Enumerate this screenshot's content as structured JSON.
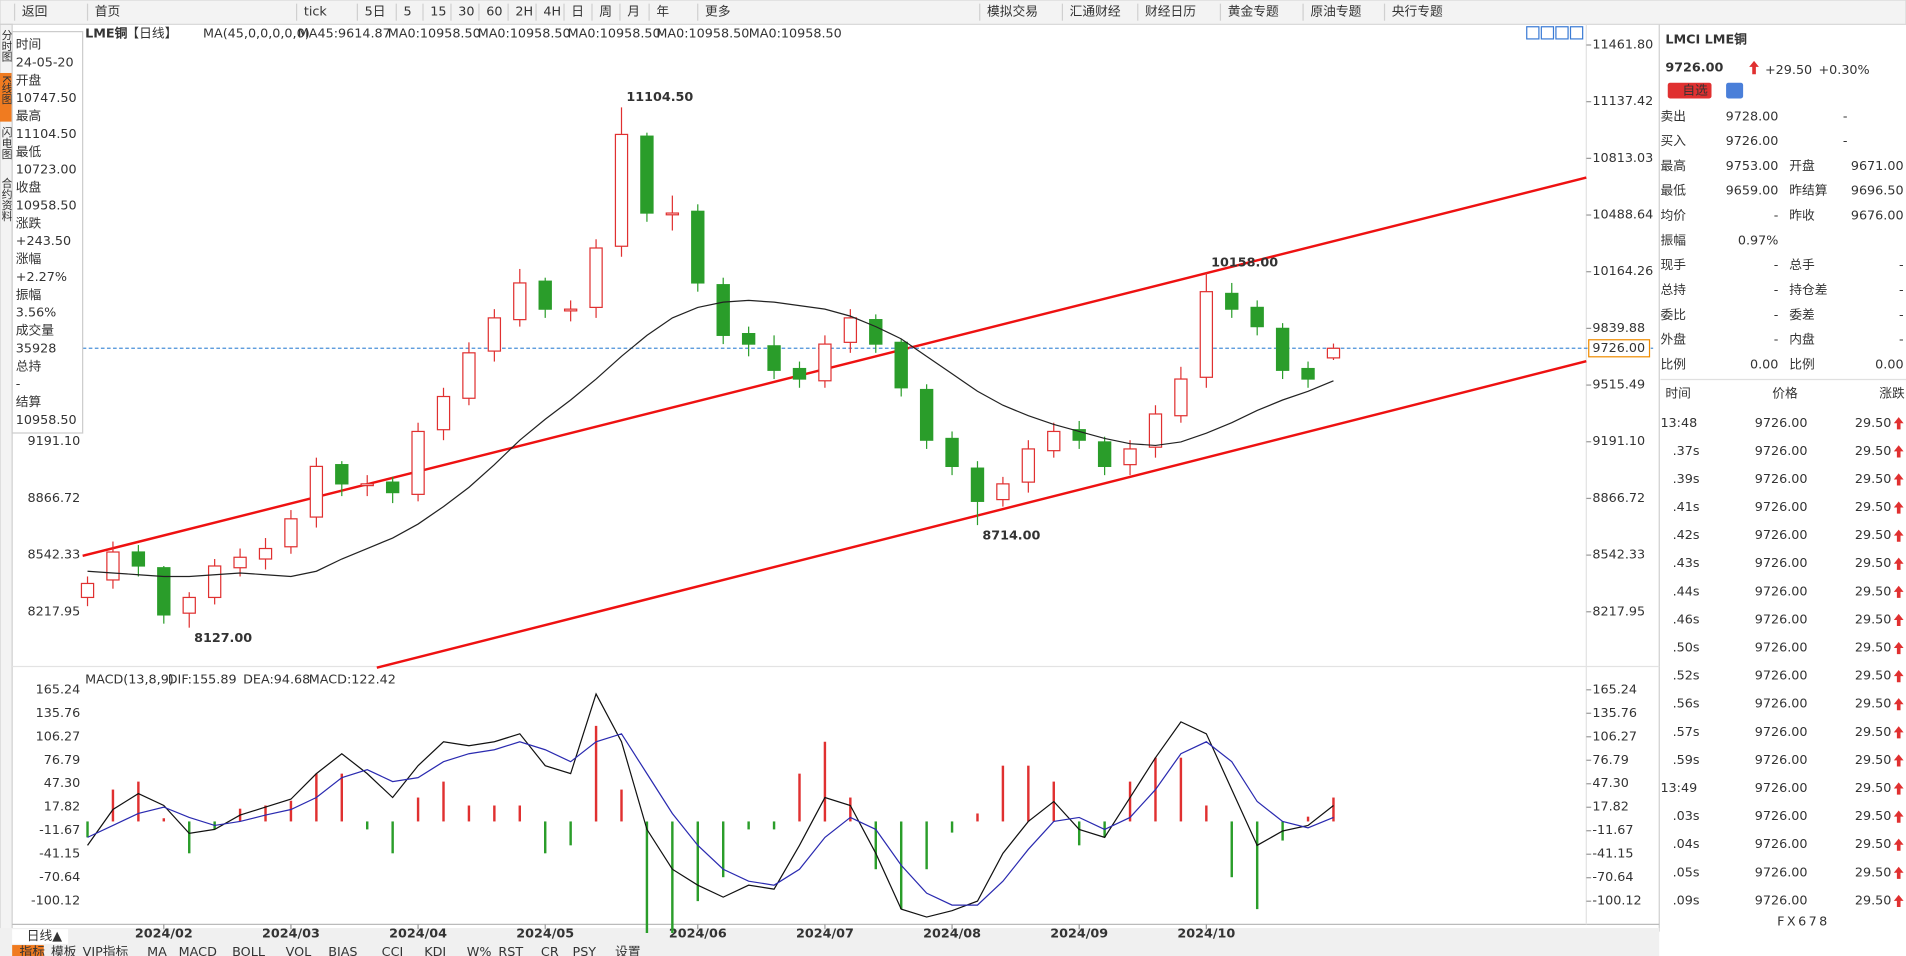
{
  "toolbar": [
    "返回",
    "首页",
    "tick",
    "5日",
    "5",
    "15",
    "30",
    "60",
    "2H",
    "4H",
    "日",
    "周",
    "月",
    "年",
    "更多",
    "模拟交易",
    "汇通财经",
    "财经日历",
    "黄金专题",
    "原油专题",
    "央行专题"
  ],
  "side_tabs": [
    "分时图",
    "K线图",
    "闪电图",
    "合约资料"
  ],
  "chart_header": {
    "symbol": "LME铜",
    "period": "【日线】",
    "items": [
      {
        "text": "MA(45,0,0,0,0,0)",
        "color": "#333333"
      },
      {
        "text": "MA45:9614.87",
        "color": "#333333"
      },
      {
        "text": "MA0:10958.50",
        "color": "#1a3cc8"
      },
      {
        "text": "MA0:10958.50",
        "color": "#e020e0"
      },
      {
        "text": "MA0:10958.50",
        "color": "#f08c00"
      },
      {
        "text": "MA0:10958.50",
        "color": "#888888"
      },
      {
        "text": "MA0:10958.50",
        "color": "#e03030"
      }
    ]
  },
  "info_panel": [
    {
      "label": "时间",
      "value": "24-05-20",
      "color": "#333333"
    },
    {
      "label": "开盘",
      "value": "10747.50",
      "color": "#e03030"
    },
    {
      "label": "最高",
      "value": "11104.50",
      "color": "#e03030"
    },
    {
      "label": "最低",
      "value": "10723.00",
      "color": "#e03030"
    },
    {
      "label": "收盘",
      "value": "10958.50",
      "color": "#e03030"
    },
    {
      "label": "涨跌",
      "value": "+243.50",
      "color": "#e03030"
    },
    {
      "label": "涨幅",
      "value": "+2.27%",
      "color": "#e03030"
    },
    {
      "label": "振幅",
      "value": "3.56%",
      "color": "#333333"
    },
    {
      "label": "成交量",
      "value": "35928",
      "color": "#333333"
    },
    {
      "label": "总持",
      "value": "-",
      "color": "#333333"
    },
    {
      "label": "结算",
      "value": "10958.50",
      "color": "#333333"
    }
  ],
  "chart_data": {
    "type": "candlestick",
    "categories": [
      null,
      null,
      null,
      "2024/02",
      null,
      null,
      null,
      null,
      "2024/03",
      null,
      null,
      null,
      null,
      "2024/04",
      null,
      null,
      null,
      null,
      "2024/05",
      null,
      null,
      null,
      null,
      null,
      "2024/06",
      null,
      null,
      null,
      null,
      "2024/07",
      null,
      null,
      null,
      null,
      "2024/08",
      null,
      null,
      null,
      null,
      "2024/09",
      null,
      null,
      null,
      null,
      "2024/10",
      null,
      null,
      null,
      null,
      null
    ],
    "open": [
      8300,
      8400,
      8560,
      8470,
      8210,
      8300,
      8470,
      8520,
      8590,
      8760,
      9060,
      8940,
      8960,
      8890,
      9260,
      9440,
      9710,
      9890,
      10110,
      9940,
      9960,
      10310,
      10940,
      10490,
      10510,
      10090,
      9810,
      9740,
      9610,
      9540,
      9760,
      9890,
      9760,
      9490,
      9210,
      9040,
      8860,
      8960,
      9140,
      9260,
      9190,
      9060,
      9160,
      9340,
      9560,
      10040,
      9960,
      9840,
      9610,
      9671
    ],
    "high": [
      8420,
      8620,
      8600,
      8480,
      8330,
      8520,
      8580,
      8640,
      8800,
      9100,
      9080,
      9000,
      8990,
      9300,
      9500,
      9760,
      9950,
      10180,
      10130,
      10000,
      10350,
      11104.5,
      10960,
      10600,
      10550,
      10130,
      9850,
      9800,
      9650,
      9800,
      9950,
      9920,
      9780,
      9520,
      9250,
      9080,
      8990,
      9200,
      9300,
      9310,
      9220,
      9200,
      9400,
      9620,
      10158,
      10100,
      10000,
      9870,
      9650,
      9753
    ],
    "low": [
      8250,
      8350,
      8420,
      8150,
      8127,
      8260,
      8420,
      8460,
      8550,
      8700,
      8880,
      8880,
      8840,
      8850,
      9200,
      9400,
      9650,
      9850,
      9900,
      9880,
      9900,
      10250,
      10450,
      10400,
      10050,
      9750,
      9680,
      9550,
      9500,
      9500,
      9700,
      9700,
      9450,
      9150,
      9000,
      8714,
      8820,
      8900,
      9100,
      9150,
      9000,
      9000,
      9100,
      9300,
      9500,
      9900,
      9800,
      9550,
      9500,
      9659
    ],
    "close": [
      8380,
      8560,
      8480,
      8200,
      8300,
      8480,
      8530,
      8580,
      8750,
      9050,
      8950,
      8950,
      8900,
      9250,
      9450,
      9700,
      9900,
      10100,
      9950,
      9950,
      10300,
      10950,
      10500,
      10500,
      10100,
      9800,
      9750,
      9600,
      9550,
      9750,
      9900,
      9750,
      9500,
      9200,
      9050,
      8850,
      8950,
      9150,
      9250,
      9200,
      9050,
      9150,
      9350,
      9550,
      10050,
      9950,
      9850,
      9600,
      9550,
      9726
    ],
    "up_color": "#e03030",
    "down_color": "#2a9d2a",
    "ma": {
      "color": "#222222",
      "values": [
        8450,
        8440,
        8430,
        8420,
        8420,
        8430,
        8440,
        8430,
        8420,
        8450,
        8520,
        8580,
        8640,
        8720,
        8820,
        8930,
        9060,
        9200,
        9320,
        9430,
        9550,
        9680,
        9800,
        9900,
        9960,
        9990,
        10000,
        9990,
        9970,
        9950,
        9910,
        9850,
        9780,
        9680,
        9580,
        9480,
        9400,
        9340,
        9290,
        9250,
        9210,
        9180,
        9170,
        9190,
        9240,
        9300,
        9370,
        9430,
        9480,
        9540
      ]
    },
    "current_price": {
      "value": 9726,
      "label": "9726.00",
      "color": "#f08c00"
    },
    "annotations": [
      {
        "text": "11104.50",
        "candle": 21,
        "at": "high",
        "color": "#e03030"
      },
      {
        "text": "10158.00",
        "candle": 44,
        "at": "high",
        "color": "#e03030"
      },
      {
        "text": "8714.00",
        "candle": 35,
        "at": "low",
        "color": "#2a9d2a"
      },
      {
        "text": "8127.00",
        "candle": 4,
        "at": "low",
        "color": "#2a9d2a"
      }
    ],
    "ylim": [
      7925.5,
      11566.2
    ],
    "yticks": [
      {
        "value": 11461.8,
        "label": "11461.80"
      },
      11137.42,
      10813.03,
      10488.64,
      10164.26,
      9839.88,
      9515.49,
      {
        "value": 9191.1,
        "label": "9191.10"
      },
      8866.72,
      8542.33,
      8217.95
    ]
  },
  "macd": {
    "title": "MACD(13,8,9)",
    "dif_label": "DIF:155.89",
    "dea_label": "DEA:94.68",
    "macd_label": "MACD:122.42",
    "dif": {
      "color": "#111111",
      "values": [
        -30,
        15,
        35,
        20,
        -15,
        -10,
        8,
        18,
        28,
        60,
        85,
        60,
        30,
        70,
        100,
        95,
        100,
        110,
        70,
        60,
        160,
        100,
        -10,
        -60,
        -80,
        -95,
        -80,
        -85,
        -30,
        30,
        20,
        -40,
        -110,
        -120,
        -112,
        -100,
        -40,
        0,
        25,
        -10,
        -20,
        30,
        80,
        125,
        110,
        40,
        -30,
        -12,
        -5,
        20
      ]
    },
    "dea": {
      "color": "#2a2ab0",
      "values": [
        -20,
        -5,
        10,
        18,
        5,
        -5,
        0,
        8,
        15,
        30,
        55,
        65,
        50,
        55,
        75,
        85,
        90,
        100,
        90,
        75,
        100,
        110,
        60,
        10,
        -30,
        -60,
        -75,
        -80,
        -60,
        -20,
        5,
        -10,
        -55,
        -90,
        -105,
        -105,
        -75,
        -35,
        0,
        5,
        -10,
        5,
        40,
        85,
        100,
        75,
        25,
        0,
        -8,
        5
      ]
    },
    "hist": [
      -20,
      40,
      50,
      4,
      -40,
      -10,
      16,
      20,
      26,
      60,
      60,
      -10,
      -40,
      30,
      50,
      20,
      20,
      20,
      -40,
      -30,
      120,
      40,
      -140,
      -140,
      -100,
      -70,
      -10,
      -10,
      60,
      100,
      30,
      -60,
      -110,
      -60,
      -14,
      10,
      70,
      70,
      50,
      -30,
      -20,
      50,
      80,
      80,
      20,
      -70,
      -110,
      -24,
      6,
      30
    ],
    "ylim": [
      -129.2,
      180.7
    ],
    "yticks": [
      165.24,
      135.76,
      106.27,
      76.79,
      {
        "value": 47.3,
        "label": "47.30"
      },
      17.82,
      -11.67,
      -41.15,
      -70.64,
      -100.12
    ]
  },
  "quote": {
    "title": "LMCI LME铜",
    "price": "9726.00",
    "change": "+29.50",
    "change_pct": "+0.30%",
    "watch_button": "自选",
    "rows": [
      [
        "卖出",
        "9728.00",
        "-",
        "",
        ""
      ],
      [
        "买入",
        "9726.00",
        "-",
        "",
        ""
      ],
      [
        "最高",
        "9753.00",
        "",
        "开盘",
        "9671.00"
      ],
      [
        "最低",
        "9659.00",
        "",
        "昨结算",
        "9696.50"
      ],
      [
        "均价",
        "-",
        "",
        "昨收",
        "9676.00"
      ],
      [
        "振幅",
        "0.97%",
        "",
        "",
        ""
      ],
      [
        "现手",
        "-",
        "",
        "总手",
        "-"
      ],
      [
        "总持",
        "-",
        "",
        "持仓差",
        "-"
      ],
      [
        "委比",
        "-",
        "",
        "委差",
        "-"
      ],
      [
        "外盘",
        "-",
        "",
        "内盘",
        "-"
      ],
      [
        "比例",
        "0.00",
        "",
        "比例",
        "0.00"
      ]
    ]
  },
  "ticks_table": {
    "headers": [
      "时间",
      "价格",
      "涨跌"
    ],
    "rows": [
      [
        "13:48",
        "9726.00",
        "29.50"
      ],
      [
        ".37s",
        "9726.00",
        "29.50"
      ],
      [
        ".39s",
        "9726.00",
        "29.50"
      ],
      [
        ".41s",
        "9726.00",
        "29.50"
      ],
      [
        ".42s",
        "9726.00",
        "29.50"
      ],
      [
        ".43s",
        "9726.00",
        "29.50"
      ],
      [
        ".44s",
        "9726.00",
        "29.50"
      ],
      [
        ".46s",
        "9726.00",
        "29.50"
      ],
      [
        ".50s",
        "9726.00",
        "29.50"
      ],
      [
        ".52s",
        "9726.00",
        "29.50"
      ],
      [
        ".56s",
        "9726.00",
        "29.50"
      ],
      [
        ".57s",
        "9726.00",
        "29.50"
      ],
      [
        ".59s",
        "9726.00",
        "29.50"
      ],
      [
        "13:49",
        "9726.00",
        "29.50"
      ],
      [
        ".03s",
        "9726.00",
        "29.50"
      ],
      [
        ".04s",
        "9726.00",
        "29.50"
      ],
      [
        ".05s",
        "9726.00",
        "29.50"
      ],
      [
        ".09s",
        "9726.00",
        "29.50"
      ]
    ]
  },
  "bottom": {
    "period_tab": "日线▲",
    "tabs": [
      "指标",
      "模板",
      "VIP指标",
      "MA",
      "MACD",
      "BOLL",
      "VOL",
      "BIAS",
      "CCI",
      "KDJ",
      "W%",
      "RST",
      "CR",
      "PSY",
      "设置"
    ]
  },
  "watermark": "FX678"
}
